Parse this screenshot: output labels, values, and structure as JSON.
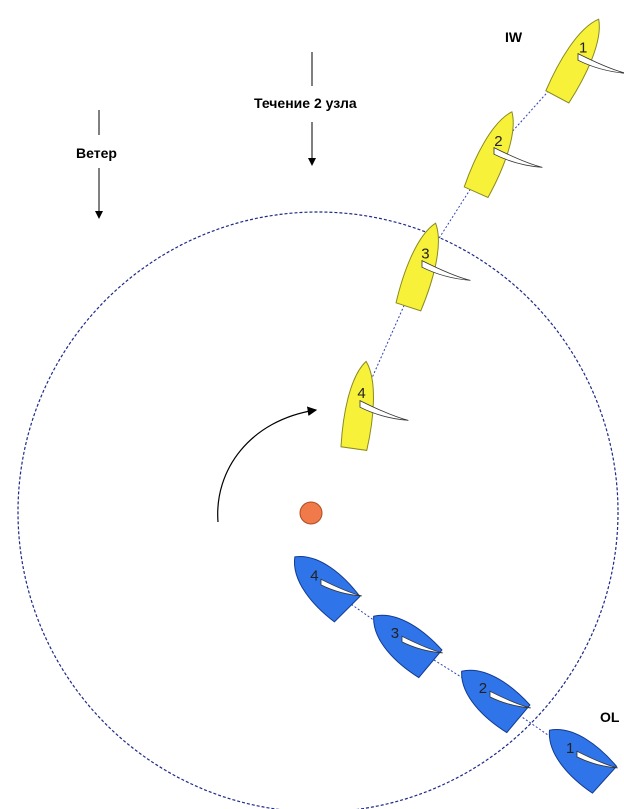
{
  "labels": {
    "wind": "Ветер",
    "current": "Течение 2 узла",
    "iw": "IW",
    "ol": "OL"
  },
  "yellow_boats": [
    {
      "label": "1"
    },
    {
      "label": "2"
    },
    {
      "label": "3"
    },
    {
      "label": "4"
    }
  ],
  "blue_boats": [
    {
      "label": "1"
    },
    {
      "label": "2"
    },
    {
      "label": "3"
    },
    {
      "label": "4"
    }
  ]
}
